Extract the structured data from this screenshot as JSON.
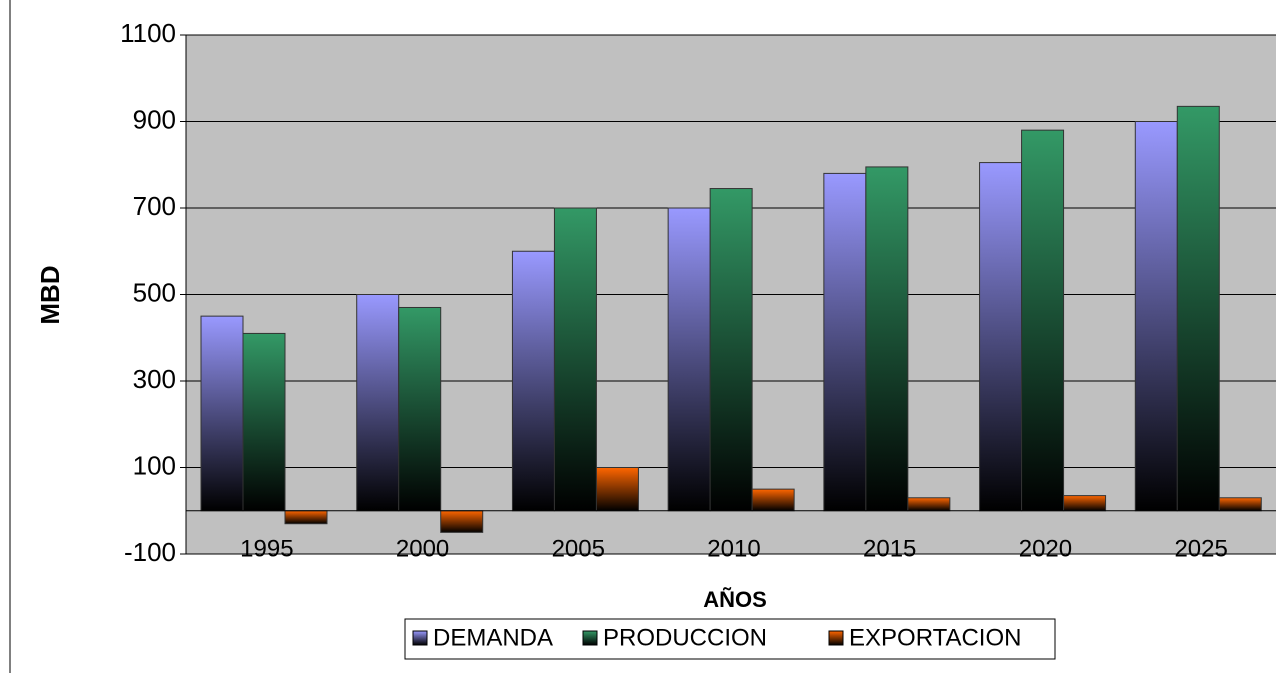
{
  "chart_data": {
    "type": "bar",
    "categories": [
      "1995",
      "2000",
      "2005",
      "2010",
      "2015",
      "2020",
      "2025"
    ],
    "series": [
      {
        "name": "DEMANDA",
        "color": "#9999ff",
        "values": [
          450,
          500,
          600,
          700,
          780,
          805,
          900
        ]
      },
      {
        "name": "PRODUCCION",
        "color": "#339966",
        "values": [
          410,
          470,
          700,
          745,
          795,
          880,
          935
        ]
      },
      {
        "name": "EXPORTACION",
        "color": "#ff6600",
        "values": [
          -30,
          -50,
          100,
          50,
          30,
          35,
          30
        ]
      }
    ],
    "x_label": "AÑOS",
    "y_label": "MBD",
    "ylim": [
      -100,
      1100
    ],
    "yticks": [
      -100,
      100,
      300,
      500,
      700,
      900,
      1100
    ],
    "grid": true,
    "legend": "bottom"
  }
}
